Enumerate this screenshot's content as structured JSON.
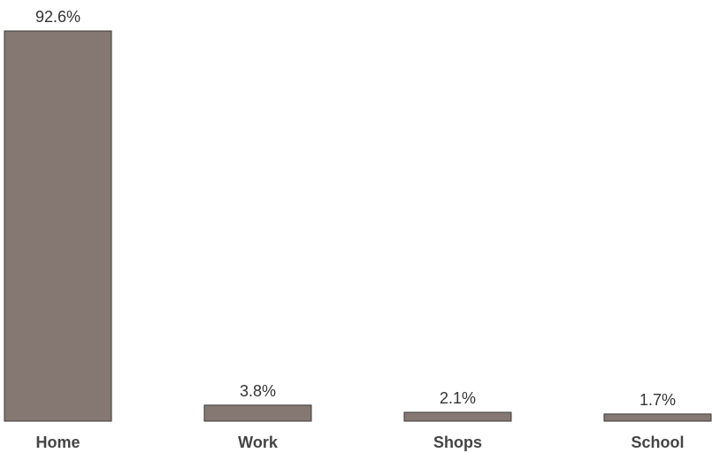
{
  "chart_data": {
    "type": "bar",
    "title": "",
    "xlabel": "",
    "ylabel": "",
    "categories": [
      "Home",
      "Work",
      "Shops",
      "School"
    ],
    "values": [
      92.6,
      3.8,
      2.1,
      1.7
    ],
    "value_labels": [
      "92.6%",
      "3.8%",
      "2.1%",
      "1.7%"
    ],
    "ylim": [
      0,
      92.6
    ],
    "grid": false,
    "legend": "none",
    "bar_color": "#857872"
  }
}
